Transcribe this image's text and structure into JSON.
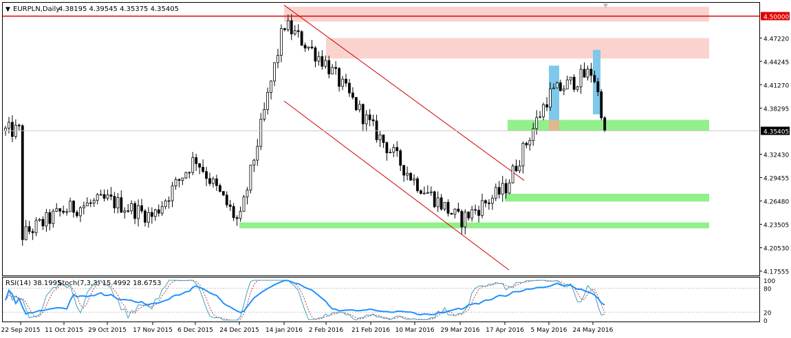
{
  "header": {
    "symbol_timeframe": "EURPLN,Daily",
    "ohlc": "4.38195 4.39545 4.35375 4.35405"
  },
  "price_axis": {
    "ticks": [
      "4.47220",
      "4.44245",
      "4.41270",
      "4.38295",
      "4.32430",
      "4.29455",
      "4.26480",
      "4.23505",
      "4.20530",
      "4.17555"
    ],
    "tick_values": [
      4.4722,
      4.44245,
      4.4127,
      4.38295,
      4.3243,
      4.29455,
      4.2648,
      4.23505,
      4.2053,
      4.17555
    ],
    "resistance_label": "4.50000",
    "current_label": "4.35405"
  },
  "date_axis": {
    "labels": [
      "22 Sep 2015",
      "11 Oct 2015",
      "29 Oct 2015",
      "17 Nov 2015",
      "6 Dec 2015",
      "24 Dec 2015",
      "14 Jan 2016",
      "2 Feb 2016",
      "21 Feb 2016",
      "10 Mar 2016",
      "29 Mar 2016",
      "17 Apr 2016",
      "5 May 2016",
      "24 May 2016"
    ]
  },
  "indicator": {
    "legend_rsi": "RSI(14) 38.1995",
    "legend_stoch": "Stoch(7,3,3) 15.4992 18.6753",
    "ticks": [
      "100",
      "80",
      "20",
      "0"
    ]
  },
  "colors": {
    "candle": "#000000",
    "resistance_line": "#e00000",
    "channel": "#cc0000",
    "red_zone": "#fbd3ce",
    "green_zone": "#92f08a",
    "blue_box": "#7ec8ec",
    "tan_box": "#dcb98e",
    "rsi_line": "#1e90ff",
    "stoch_main": "#40a0c0",
    "stoch_signal": "#c03030",
    "label_bg": "#000000",
    "label_text": "#ffffff"
  },
  "chart_data": {
    "type": "candlestick",
    "title": "EURPLN,Daily",
    "ylim": [
      4.17,
      4.517
    ],
    "horizontal_levels": [
      {
        "name": "resistance",
        "value": 4.5
      },
      {
        "name": "current",
        "value": 4.35405
      }
    ],
    "zones": [
      {
        "kind": "supply",
        "from": "14 Jan 2016",
        "to": "end",
        "low": 4.493,
        "high": 4.512
      },
      {
        "kind": "supply",
        "from": "2 Feb 2016",
        "to": "end",
        "low": 4.446,
        "high": 4.472
      },
      {
        "kind": "demand",
        "from": "24 Dec 2015",
        "to": "end",
        "low": 4.23,
        "high": 4.2375
      },
      {
        "kind": "demand",
        "from": "17 Apr 2016",
        "to": "end",
        "low": 4.264,
        "high": 4.274
      },
      {
        "kind": "demand",
        "from": "19 Apr 2016",
        "to": "end",
        "low": 4.354,
        "high": 4.368
      }
    ],
    "channel": {
      "upper": [
        {
          "date": "14 Jan 2016",
          "value": 4.514
        },
        {
          "date": "21 Apr 2016",
          "value": 4.291
        }
      ],
      "lower": [
        {
          "date": "14 Jan 2016",
          "value": 4.392
        },
        {
          "date": "20 Apr 2016",
          "value": 4.177
        }
      ]
    },
    "boxes": [
      {
        "from": "5 May 2016",
        "to": "11 May 2016",
        "low": 4.368,
        "high": 4.437,
        "color": "blue"
      },
      {
        "from": "5 May 2016",
        "to": "11 May 2016",
        "low": 4.354,
        "high": 4.368,
        "color": "tan"
      },
      {
        "from": "24 May 2016",
        "to": "30 May 2016",
        "low": 4.375,
        "high": 4.457,
        "color": "blue"
      }
    ],
    "anchor_closes": [
      {
        "date": "22 Sep 2015",
        "close": 4.22
      },
      {
        "date": "11 Oct 2015",
        "close": 4.253
      },
      {
        "date": "29 Oct 2015",
        "close": 4.266
      },
      {
        "date": "17 Nov 2015",
        "close": 4.245
      },
      {
        "date": "6 Dec 2015",
        "close": 4.32
      },
      {
        "date": "24 Dec 2015",
        "close": 4.236
      },
      {
        "date": "14 Jan 2016",
        "close": 4.49
      },
      {
        "date": "2 Feb 2016",
        "close": 4.44
      },
      {
        "date": "21 Feb 2016",
        "close": 4.36
      },
      {
        "date": "10 Mar 2016",
        "close": 4.29
      },
      {
        "date": "29 Mar 2016",
        "close": 4.24
      },
      {
        "date": "17 Apr 2016",
        "close": 4.28
      },
      {
        "date": "5 May 2016",
        "close": 4.4
      },
      {
        "date": "24 May 2016",
        "close": 4.43
      },
      {
        "date": "31 May 2016",
        "close": 4.35405
      }
    ],
    "rsi_last": 38.1995,
    "stoch_main_last": 15.4992,
    "stoch_signal_last": 18.6753
  }
}
